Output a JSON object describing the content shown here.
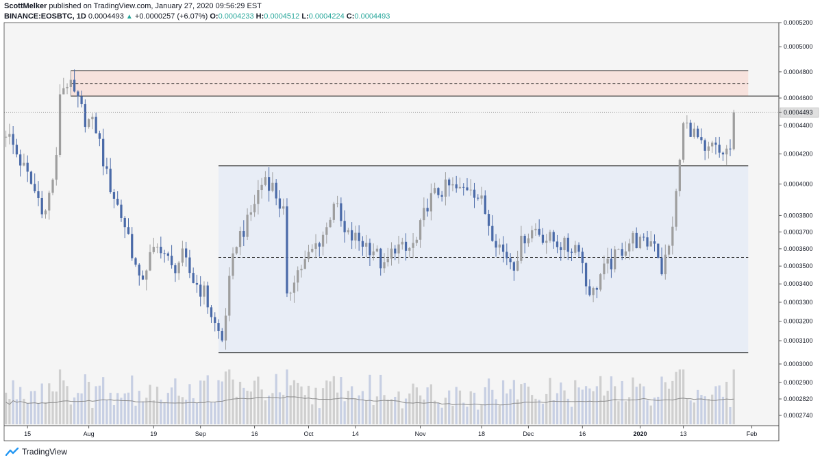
{
  "header": {
    "author": "ScottMelker",
    "published": "published on TradingView.com, January 27, 2020 09:56:29 EST",
    "symbol": "BINANCE:EOSBTC, 1D",
    "last": "0.0004493",
    "change_arrow": "▲",
    "change": "+0.0000257 (+6.07%)",
    "o_label": "O:",
    "o_value": "0.0004233",
    "h_label": "H:",
    "h_value": "0.0004512",
    "l_label": "L:",
    "l_value": "0.0004224",
    "c_label": "C:",
    "c_value": "0.0004493"
  },
  "footer": {
    "brand": "TradingView",
    "logo_icon": "tradingview-logo-icon"
  },
  "colors": {
    "up": "#9e9e9e",
    "down": "#4a6aa8",
    "volume_up": "#cfcfcf",
    "volume_down": "#c7cfe3",
    "range_box": "#e8edf6",
    "resistance_box": "#f7e2dd",
    "background": "#f5f5f5",
    "accent": "#26a69a"
  },
  "chart_data": {
    "type": "candlestick",
    "symbol": "BINANCE:EOSBTC",
    "interval": "1D",
    "y_scale": "log",
    "ylim": [
      0.00027,
      0.00052
    ],
    "y_ticks": [
      "0.0005200",
      "0.0005000",
      "0.0004800",
      "0.0004600",
      "0.0004493",
      "0.0004400",
      "0.0004200",
      "0.0004000",
      "0.0003800",
      "0.0003700",
      "0.0003600",
      "0.0003500",
      "0.0003400",
      "0.0003300",
      "0.0003200",
      "0.0003100",
      "0.0003000",
      "0.0002900",
      "0.0002820",
      "0.0002740"
    ],
    "last_price_label": "0.0004493",
    "x_ticks": [
      {
        "label": "15",
        "date": "2019-07-15"
      },
      {
        "label": "Aug",
        "date": "2019-08-01"
      },
      {
        "label": "19",
        "date": "2019-08-19"
      },
      {
        "label": "Sep",
        "date": "2019-09-01"
      },
      {
        "label": "16",
        "date": "2019-09-16"
      },
      {
        "label": "Oct",
        "date": "2019-10-01"
      },
      {
        "label": "14",
        "date": "2019-10-14"
      },
      {
        "label": "Nov",
        "date": "2019-11-01"
      },
      {
        "label": "18",
        "date": "2019-11-18"
      },
      {
        "label": "Dec",
        "date": "2019-12-01"
      },
      {
        "label": "16",
        "date": "2019-12-16"
      },
      {
        "label": "2020",
        "date": "2020-01-01"
      },
      {
        "label": "13",
        "date": "2020-01-13"
      },
      {
        "label": "Feb",
        "date": "2020-02-01"
      }
    ],
    "close_path": [
      [
        "2019-07-09",
        0.000436
      ],
      [
        "2019-07-13",
        0.000415
      ],
      [
        "2019-07-17",
        0.000395
      ],
      [
        "2019-07-20",
        0.000382
      ],
      [
        "2019-07-23",
        0.000415
      ],
      [
        "2019-07-24",
        0.000465
      ],
      [
        "2019-07-26",
        0.000472
      ],
      [
        "2019-07-28",
        0.000462
      ],
      [
        "2019-07-31",
        0.000445
      ],
      [
        "2019-08-03",
        0.000438
      ],
      [
        "2019-08-06",
        0.000405
      ],
      [
        "2019-08-09",
        0.000386
      ],
      [
        "2019-08-12",
        0.000368
      ],
      [
        "2019-08-15",
        0.00034
      ],
      [
        "2019-08-18",
        0.000355
      ],
      [
        "2019-08-21",
        0.000362
      ],
      [
        "2019-08-24",
        0.000348
      ],
      [
        "2019-08-27",
        0.000355
      ],
      [
        "2019-08-30",
        0.000342
      ],
      [
        "2019-09-02",
        0.000335
      ],
      [
        "2019-09-05",
        0.000318
      ],
      [
        "2019-09-07",
        0.00031
      ],
      [
        "2019-09-09",
        0.00034
      ],
      [
        "2019-09-11",
        0.000365
      ],
      [
        "2019-09-14",
        0.000375
      ],
      [
        "2019-09-17",
        0.000395
      ],
      [
        "2019-09-19",
        0.000405
      ],
      [
        "2019-09-21",
        0.000398
      ],
      [
        "2019-09-24",
        0.000382
      ],
      [
        "2019-09-25",
        0.00033
      ],
      [
        "2019-09-27",
        0.000345
      ],
      [
        "2019-09-30",
        0.000352
      ],
      [
        "2019-10-03",
        0.000362
      ],
      [
        "2019-10-06",
        0.000372
      ],
      [
        "2019-10-08",
        0.00039
      ],
      [
        "2019-10-11",
        0.000368
      ],
      [
        "2019-10-15",
        0.000365
      ],
      [
        "2019-10-19",
        0.00036
      ],
      [
        "2019-10-22",
        0.000348
      ],
      [
        "2019-10-25",
        0.000362
      ],
      [
        "2019-10-28",
        0.000358
      ],
      [
        "2019-10-31",
        0.000364
      ],
      [
        "2019-11-03",
        0.000388
      ],
      [
        "2019-11-06",
        0.000395
      ],
      [
        "2019-11-09",
        0.000398
      ],
      [
        "2019-11-12",
        0.000395
      ],
      [
        "2019-11-15",
        0.0004
      ],
      [
        "2019-11-18",
        0.000388
      ],
      [
        "2019-11-21",
        0.00037
      ],
      [
        "2019-11-24",
        0.000358
      ],
      [
        "2019-11-27",
        0.000352
      ],
      [
        "2019-11-30",
        0.000368
      ],
      [
        "2019-12-03",
        0.000372
      ],
      [
        "2019-12-06",
        0.000366
      ],
      [
        "2019-12-09",
        0.000364
      ],
      [
        "2019-12-12",
        0.00036
      ],
      [
        "2019-12-15",
        0.000363
      ],
      [
        "2019-12-17",
        0.00034
      ],
      [
        "2019-12-19",
        0.000335
      ],
      [
        "2019-12-21",
        0.000345
      ],
      [
        "2019-12-24",
        0.000352
      ],
      [
        "2019-12-27",
        0.00036
      ],
      [
        "2019-12-30",
        0.000366
      ],
      [
        "2020-01-02",
        0.000362
      ],
      [
        "2020-01-05",
        0.000366
      ],
      [
        "2020-01-07",
        0.000348
      ],
      [
        "2020-01-09",
        0.00036
      ],
      [
        "2020-01-11",
        0.000392
      ],
      [
        "2020-01-13",
        0.00044
      ],
      [
        "2020-01-15",
        0.000438
      ],
      [
        "2020-01-17",
        0.00043
      ],
      [
        "2020-01-19",
        0.000418
      ],
      [
        "2020-01-21",
        0.000425
      ],
      [
        "2020-01-23",
        0.00042
      ],
      [
        "2020-01-25",
        0.000422
      ],
      [
        "2020-01-26",
        0.000423
      ],
      [
        "2020-01-27",
        0.0004493
      ]
    ],
    "last_candle": {
      "date": "2020-01-27",
      "open": 0.0004233,
      "high": 0.0004512,
      "low": 0.0004224,
      "close": 0.0004493
    },
    "annotations": [
      {
        "type": "zone",
        "name": "resistance",
        "from": "2019-07-27",
        "to": "2020-01-31",
        "y_low": 0.0004615,
        "y_high": 0.000481,
        "midline": 0.000471
      },
      {
        "type": "zone",
        "name": "range",
        "from": "2019-09-06",
        "to": "2020-01-31",
        "y_low": 0.000304,
        "y_high": 0.000412,
        "midline": 0.000355
      }
    ],
    "volume_ma": true,
    "grid": false,
    "legend": "none"
  }
}
